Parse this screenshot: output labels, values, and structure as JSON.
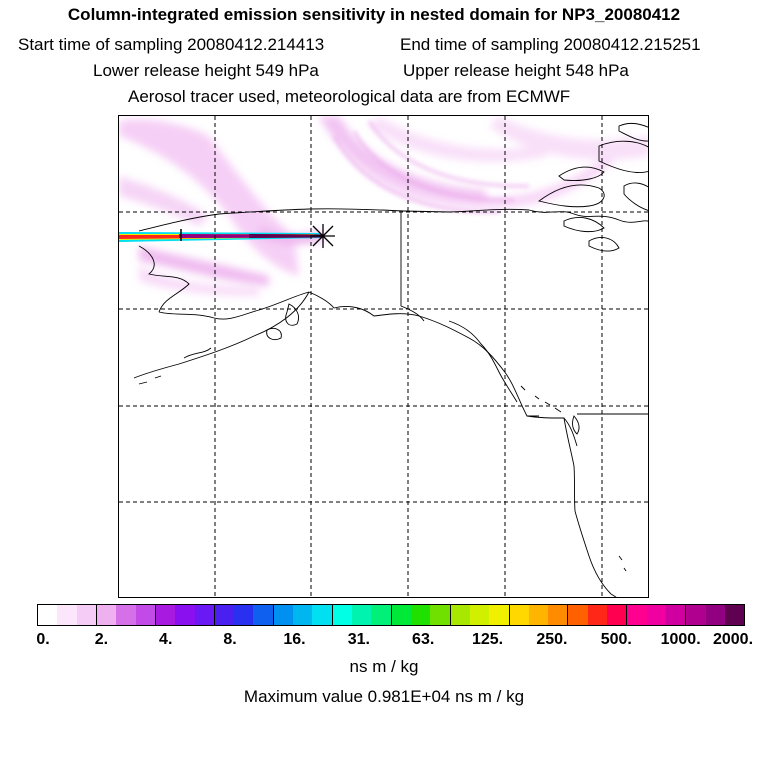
{
  "header": {
    "title": "Column-integrated emission sensitivity in nested domain for NP3_20080412",
    "start_sampling": "Start time of sampling 20080412.214413",
    "end_sampling": "End time of sampling 20080412.215251",
    "lower_release": "Lower release height  549 hPa",
    "upper_release": "Upper release height  548 hPa",
    "tracer_info": "Aerosol tracer used, meteorological data are from ECMWF"
  },
  "colorbar": {
    "ticks": [
      "0.",
      "2.",
      "4.",
      "8.",
      "16.",
      "31.",
      "63.",
      "125.",
      "250.",
      "500.",
      "1000.",
      "2000."
    ],
    "colors": [
      "#ffffff",
      "#fbe6fb",
      "#f5ccf5",
      "#eeb0ee",
      "#d670e8",
      "#c24ae6",
      "#a81ae0",
      "#8b10f0",
      "#6a18f4",
      "#4a20f0",
      "#2a30f0",
      "#1060f0",
      "#0090f0",
      "#00b6f0",
      "#00e0f0",
      "#00ffe4",
      "#00f4b0",
      "#00f078",
      "#00e838",
      "#20e000",
      "#70e000",
      "#a8e800",
      "#d0f000",
      "#f0f000",
      "#ffd800",
      "#ffb400",
      "#ff8c00",
      "#ff6000",
      "#ff2818",
      "#ff0050",
      "#ff0090",
      "#f000a0",
      "#d000a0",
      "#b00090",
      "#900080",
      "#600050"
    ],
    "unit": "ns m / kg"
  },
  "footer": {
    "max_value": "Maximum value  0.981E+04 ns m / kg"
  }
}
